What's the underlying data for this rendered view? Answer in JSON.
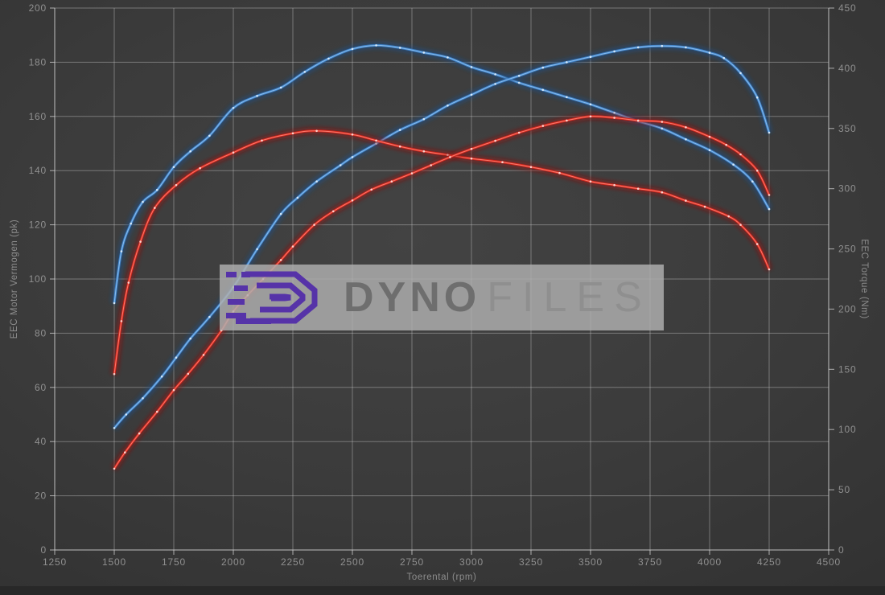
{
  "watermark": {
    "brand_primary": "DYNO",
    "brand_secondary": "FILES",
    "logo_color": "#5633a8",
    "band_color": "#aeaeae"
  },
  "chart_data": {
    "type": "line",
    "title": "",
    "xlabel": "Toerental (rpm)",
    "ylabel_left": "EEC Motor Vermogen (pk)",
    "ylabel_right": "EEC Torque (Nm)",
    "grid": true,
    "legend_position": "none",
    "x_axis": {
      "min": 1250,
      "max": 4500,
      "tick_step": 250,
      "ticks": [
        1250,
        1500,
        1750,
        2000,
        2250,
        2500,
        2750,
        3000,
        3250,
        3500,
        3750,
        4000,
        4250,
        4500
      ]
    },
    "y_left": {
      "min": 0,
      "max": 200,
      "tick_step": 20,
      "ticks": [
        0,
        20,
        40,
        60,
        80,
        100,
        120,
        140,
        160,
        180,
        200
      ]
    },
    "y_right": {
      "min": 0,
      "max": 450,
      "tick_step": 50,
      "ticks": [
        0,
        50,
        100,
        150,
        200,
        250,
        300,
        350,
        400,
        450
      ]
    },
    "series": [
      {
        "name": "torque-blue",
        "unit": "Nm",
        "axis": "right",
        "color": "#3f86cd",
        "glow": "#1c4f86",
        "core": "#8fc0ee",
        "marker": "#d9ebfb",
        "peak": {
          "value": 419,
          "rpm": 2600
        },
        "points": [
          [
            1500,
            205
          ],
          [
            1530,
            248
          ],
          [
            1570,
            271
          ],
          [
            1620,
            289
          ],
          [
            1680,
            299
          ],
          [
            1750,
            318
          ],
          [
            1820,
            331
          ],
          [
            1900,
            344
          ],
          [
            2000,
            367
          ],
          [
            2100,
            377
          ],
          [
            2200,
            384
          ],
          [
            2300,
            397
          ],
          [
            2400,
            408
          ],
          [
            2500,
            416
          ],
          [
            2600,
            419
          ],
          [
            2700,
            417
          ],
          [
            2800,
            413
          ],
          [
            2900,
            409
          ],
          [
            3000,
            401
          ],
          [
            3100,
            395
          ],
          [
            3200,
            388
          ],
          [
            3300,
            382
          ],
          [
            3400,
            376
          ],
          [
            3500,
            370
          ],
          [
            3600,
            363
          ],
          [
            3700,
            356
          ],
          [
            3800,
            350
          ],
          [
            3900,
            341
          ],
          [
            4000,
            332
          ],
          [
            4100,
            320
          ],
          [
            4180,
            306
          ],
          [
            4250,
            283
          ]
        ]
      },
      {
        "name": "power-blue",
        "unit": "pk",
        "axis": "left",
        "color": "#3f86cd",
        "glow": "#1c4f86",
        "core": "#8fc0ee",
        "marker": "#d9ebfb",
        "peak": {
          "value": 186,
          "rpm": 3800
        },
        "points": [
          [
            1500,
            45
          ],
          [
            1550,
            50
          ],
          [
            1620,
            56
          ],
          [
            1700,
            64
          ],
          [
            1760,
            71
          ],
          [
            1820,
            78
          ],
          [
            1900,
            86
          ],
          [
            2000,
            97
          ],
          [
            2100,
            111
          ],
          [
            2200,
            124
          ],
          [
            2270,
            130
          ],
          [
            2350,
            136
          ],
          [
            2450,
            142
          ],
          [
            2500,
            145
          ],
          [
            2600,
            150
          ],
          [
            2700,
            155
          ],
          [
            2800,
            159
          ],
          [
            2900,
            164
          ],
          [
            3000,
            168
          ],
          [
            3100,
            172
          ],
          [
            3200,
            175
          ],
          [
            3300,
            178
          ],
          [
            3400,
            180
          ],
          [
            3500,
            182
          ],
          [
            3600,
            184
          ],
          [
            3700,
            185.5
          ],
          [
            3800,
            186
          ],
          [
            3900,
            185.5
          ],
          [
            4000,
            183.5
          ],
          [
            4060,
            181.5
          ],
          [
            4130,
            176
          ],
          [
            4200,
            167
          ],
          [
            4250,
            154
          ]
        ]
      },
      {
        "name": "torque-red",
        "unit": "Nm",
        "axis": "right",
        "color": "#d6271b",
        "glow": "#8c130c",
        "core": "#ff7f72",
        "marker": "#ffd7d2",
        "peak": {
          "value": 348,
          "rpm": 2350
        },
        "points": [
          [
            1500,
            146
          ],
          [
            1530,
            190
          ],
          [
            1560,
            222
          ],
          [
            1610,
            256
          ],
          [
            1670,
            284
          ],
          [
            1760,
            303
          ],
          [
            1860,
            317
          ],
          [
            2000,
            330
          ],
          [
            2120,
            340
          ],
          [
            2250,
            346
          ],
          [
            2350,
            348
          ],
          [
            2500,
            345
          ],
          [
            2600,
            340
          ],
          [
            2700,
            335
          ],
          [
            2800,
            331
          ],
          [
            2900,
            328
          ],
          [
            3000,
            325
          ],
          [
            3130,
            322
          ],
          [
            3250,
            318
          ],
          [
            3370,
            313
          ],
          [
            3500,
            306
          ],
          [
            3600,
            303
          ],
          [
            3700,
            300
          ],
          [
            3800,
            297
          ],
          [
            3900,
            290
          ],
          [
            3980,
            285
          ],
          [
            4080,
            277
          ],
          [
            4130,
            270
          ],
          [
            4200,
            254
          ],
          [
            4250,
            233
          ]
        ]
      },
      {
        "name": "power-red",
        "unit": "pk",
        "axis": "left",
        "color": "#d6271b",
        "glow": "#8c130c",
        "core": "#ff7f72",
        "marker": "#ffd7d2",
        "peak": {
          "value": 160,
          "rpm": 3500
        },
        "points": [
          [
            1500,
            30
          ],
          [
            1545,
            36
          ],
          [
            1605,
            43
          ],
          [
            1680,
            51
          ],
          [
            1750,
            59
          ],
          [
            1810,
            65
          ],
          [
            1875,
            72
          ],
          [
            1950,
            81
          ],
          [
            2000,
            88
          ],
          [
            2060,
            94
          ],
          [
            2125,
            100
          ],
          [
            2200,
            107
          ],
          [
            2250,
            112
          ],
          [
            2340,
            120
          ],
          [
            2420,
            125
          ],
          [
            2500,
            129
          ],
          [
            2580,
            133
          ],
          [
            2665,
            136
          ],
          [
            2750,
            139
          ],
          [
            2830,
            142
          ],
          [
            2910,
            145
          ],
          [
            3000,
            148
          ],
          [
            3100,
            151
          ],
          [
            3200,
            154
          ],
          [
            3300,
            156.5
          ],
          [
            3400,
            158.5
          ],
          [
            3500,
            160
          ],
          [
            3600,
            159.5
          ],
          [
            3700,
            158.5
          ],
          [
            3800,
            158
          ],
          [
            3900,
            156
          ],
          [
            4000,
            152.5
          ],
          [
            4070,
            149.5
          ],
          [
            4130,
            146
          ],
          [
            4200,
            140
          ],
          [
            4250,
            131
          ]
        ]
      }
    ]
  }
}
